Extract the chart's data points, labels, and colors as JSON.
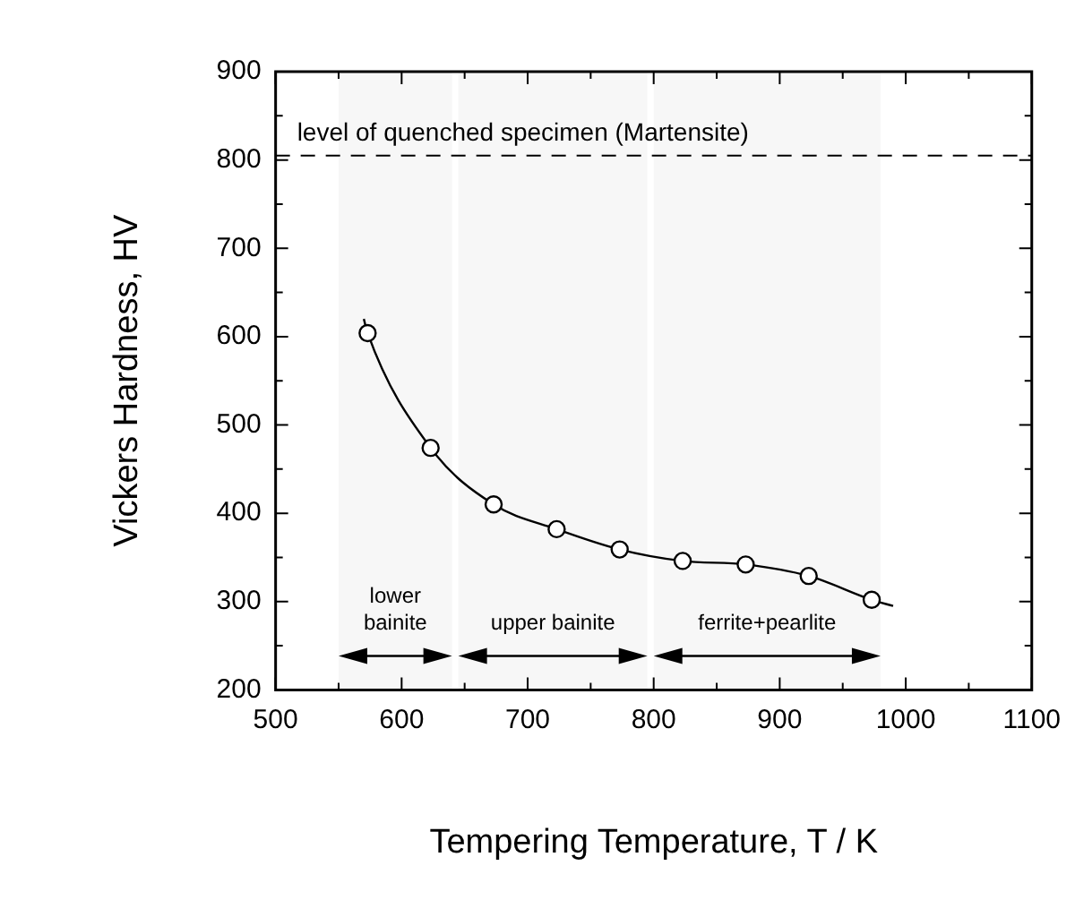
{
  "chart_data": {
    "type": "scatter",
    "xlabel": "Tempering Temperature, T / K",
    "ylabel": "Vickers Hardness, HV",
    "xlim": [
      500,
      1100
    ],
    "ylim": [
      200,
      900
    ],
    "xticks": [
      500,
      {
        "value": 550,
        "label": null
      },
      600,
      {
        "value": 650,
        "label": null
      },
      700,
      {
        "value": 750,
        "label": null
      },
      800,
      {
        "value": 850,
        "label": null
      },
      900,
      {
        "value": 950,
        "label": null
      },
      1000,
      {
        "value": 1050,
        "label": null
      },
      1100
    ],
    "yticks": [
      200,
      {
        "value": 250,
        "label": null
      },
      300,
      {
        "value": 350,
        "label": null
      },
      400,
      {
        "value": 450,
        "label": null
      },
      500,
      {
        "value": 550,
        "label": null
      },
      600,
      {
        "value": 650,
        "label": null
      },
      700,
      {
        "value": 750,
        "label": null
      },
      800,
      {
        "value": 850,
        "label": null
      },
      900
    ],
    "series": [
      {
        "color": "#000000",
        "marker": "circle",
        "x": [
          573,
          623,
          673,
          723,
          773,
          823,
          873,
          923,
          973
        ],
        "values": [
          604,
          474,
          410,
          382,
          359,
          346,
          342,
          329,
          302
        ]
      },
      {
        "type": "line",
        "color": "#000000",
        "marker": "none",
        "line_style": "solid",
        "x": [
          570,
          573,
          623,
          673,
          723,
          773,
          823,
          873,
          923,
          973,
          990
        ],
        "values": [
          620,
          604,
          474,
          410,
          382,
          359,
          346,
          342,
          329,
          302,
          295
        ]
      }
    ],
    "ref_lines": [
      {
        "axis": "y",
        "value": 805,
        "label": "level of quenched specimen (Martensite)",
        "line_style": "dashed",
        "color": "#000000"
      }
    ],
    "bands": [
      {
        "axis": "x",
        "from": 550,
        "to": 640,
        "label": "lower\nbainite",
        "color": "#f7f7f7"
      },
      {
        "axis": "x",
        "from": 645,
        "to": 795,
        "label": "upper bainite",
        "color": "#f7f7f7"
      },
      {
        "axis": "x",
        "from": 800,
        "to": 980,
        "label": "ferrite+pearlite",
        "color": "#f7f7f7"
      }
    ],
    "grid": false,
    "legend": false
  }
}
